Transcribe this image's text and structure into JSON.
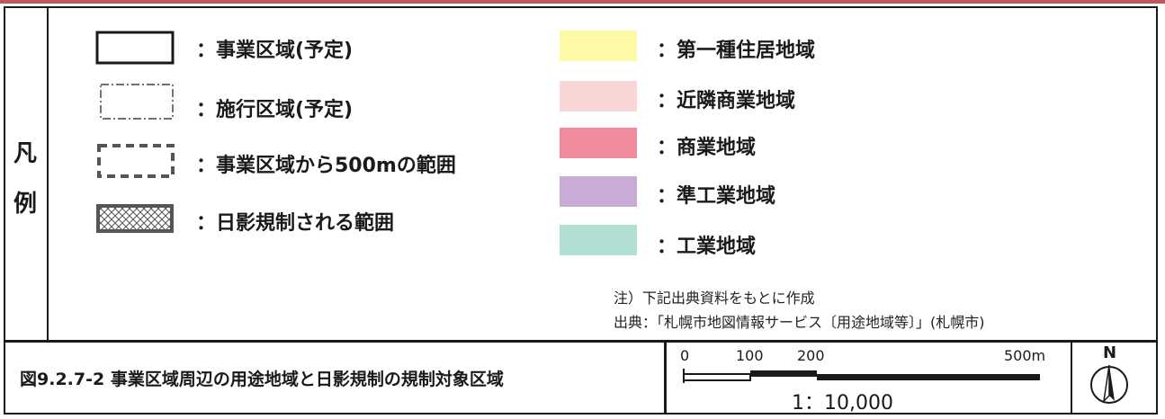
{
  "legend": {
    "heading": [
      "凡",
      "例"
    ],
    "line_items": [
      {
        "label": "：事業区域(予定)"
      },
      {
        "label": "：施行区域(予定)"
      },
      {
        "label": "：事業区域から500mの範囲"
      },
      {
        "label": "：日影規制される範囲"
      }
    ],
    "zones": [
      {
        "label": "：第一種住居地域",
        "color": "#fdf9a4"
      },
      {
        "label": "：近隣商業地域",
        "color": "#f9d5d5"
      },
      {
        "label": "：商業地域",
        "color": "#ee8b9c"
      },
      {
        "label": "：準工業地域",
        "color": "#c8acd6"
      },
      {
        "label": "：工業地域",
        "color": "#b2dfd3"
      }
    ]
  },
  "notes": {
    "note": "注）下記出典資料をもとに作成",
    "source": "出典：「札幌市地図情報サービス〔用途地域等〕」(札幌市)"
  },
  "caption": "図9.2.7-2 事業区域周辺の用途地域と日影規制の規制対象区域",
  "scale_bar": {
    "ticks": [
      "0",
      "100",
      "200",
      "500m"
    ],
    "ratio": "1：10,000"
  },
  "north_arrow": {
    "label": "N"
  }
}
